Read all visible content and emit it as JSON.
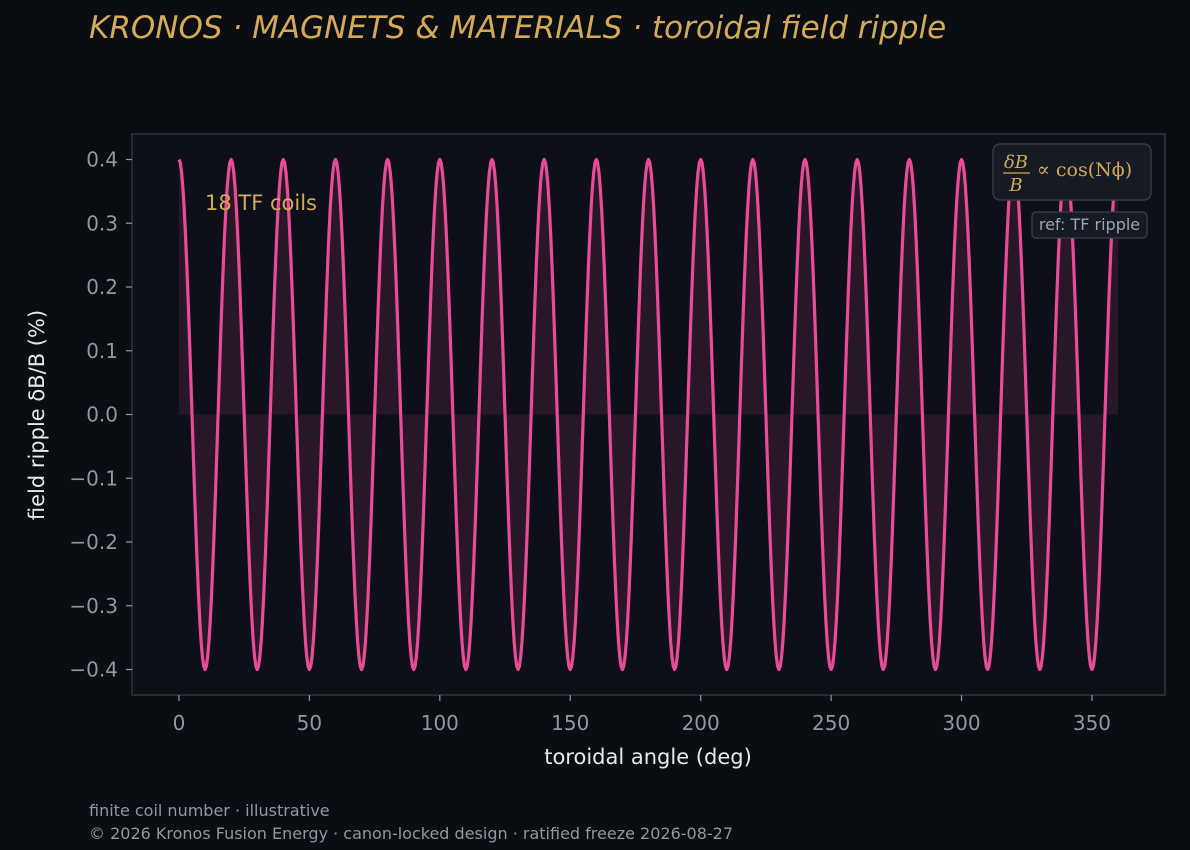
{
  "header": {
    "title": "KRONOS · MAGNETS & MATERIALS  ·  toroidal field ripple"
  },
  "colors": {
    "background": "#0a0d12",
    "plot_background": "#0d1018",
    "curve": "#e84c97",
    "accent": "#d4aa5a"
  },
  "annotations": {
    "coil_label": "18 TF coils",
    "formula_lhs_num": "δB",
    "formula_lhs_den": "B",
    "formula_rhs": "∝ cos(Nϕ)",
    "ref_badge": "ref: TF ripple"
  },
  "footer": {
    "line1": "finite coil number · illustrative",
    "line2": "© 2026 Kronos Fusion Energy · canon-locked design · ratified freeze 2026-08-27"
  },
  "chart_data": {
    "type": "line",
    "function": "0.4 * cos(N * phi)",
    "amplitude": 0.4,
    "coil_count": 18,
    "x": {
      "min": 0,
      "max": 360,
      "step": 1
    },
    "xlabel": "toroidal angle (deg)",
    "ylabel": "field ripple δB/B (%)",
    "xlim": [
      -18,
      378
    ],
    "ylim": [
      -0.44,
      0.44
    ],
    "xticks": [
      0,
      50,
      100,
      150,
      200,
      250,
      300,
      350
    ],
    "yticks": [
      0.4,
      0.3,
      0.2,
      0.1,
      0.0,
      -0.1,
      -0.2,
      -0.3,
      -0.4
    ],
    "ytick_labels": [
      "0.4",
      "0.3",
      "0.2",
      "0.1",
      "0.0",
      "−0.1",
      "−0.2",
      "−0.3",
      "−0.4"
    ],
    "fill_to_zero": true,
    "grid": false,
    "series": [
      {
        "name": "",
        "color": "#e84c97"
      }
    ]
  }
}
